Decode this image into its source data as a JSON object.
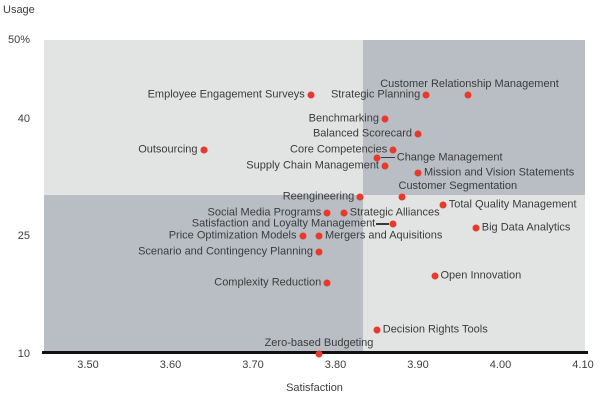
{
  "chart_data": {
    "type": "scatter",
    "title": "",
    "xlabel": "Satisfaction",
    "ylabel": "Usage",
    "x_axis": {
      "tick_labels": [
        "3.50",
        "3.60",
        "3.70",
        "3.80",
        "3.90",
        "4.00",
        "4.10"
      ],
      "tick_values": [
        3.5,
        3.6,
        3.7,
        3.8,
        3.9,
        4.0,
        4.1
      ],
      "range": [
        3.44,
        4.11
      ]
    },
    "y_axis": {
      "tick_labels": [
        "50%",
        "40",
        "25",
        "10"
      ],
      "tick_values": [
        50,
        40,
        25,
        10
      ],
      "range": [
        10,
        50
      ]
    },
    "quadrant_divider": {
      "satisfaction": 3.83,
      "usage": 30.3
    },
    "point_color": "#e8392c",
    "quadrant_colors": {
      "light": "#e2e3e3",
      "dark": "#b9bec4"
    },
    "points": [
      {
        "label": "Employee Engagement Surveys",
        "satisfaction": 3.77,
        "usage": 43,
        "label_position": "left"
      },
      {
        "label": "Strategic Planning",
        "satisfaction": 3.91,
        "usage": 43,
        "label_position": "left"
      },
      {
        "label": "Customer Relationship Management",
        "satisfaction": 3.96,
        "usage": 43,
        "label_position": "above-center",
        "label_dx": 2
      },
      {
        "label": "Benchmarking",
        "satisfaction": 3.86,
        "usage": 40,
        "label_position": "left"
      },
      {
        "label": "Balanced Scorecard",
        "satisfaction": 3.9,
        "usage": 38,
        "label_position": "left"
      },
      {
        "label": "Outsourcing",
        "satisfaction": 3.64,
        "usage": 36,
        "label_position": "left"
      },
      {
        "label": "Core Competencies",
        "satisfaction": 3.87,
        "usage": 36,
        "label_position": "left"
      },
      {
        "label": "Change Management",
        "satisfaction": 3.85,
        "usage": 35,
        "label_position": "right-connector"
      },
      {
        "label": "Supply Chain Management",
        "satisfaction": 3.86,
        "usage": 34,
        "label_position": "left"
      },
      {
        "label": "Mission and Vision Statements",
        "satisfaction": 3.9,
        "usage": 33,
        "label_position": "right"
      },
      {
        "label": "Reengineering",
        "satisfaction": 3.83,
        "usage": 30,
        "label_position": "left"
      },
      {
        "label": "Customer Segmentation",
        "satisfaction": 3.88,
        "usage": 30,
        "label_position": "above-left"
      },
      {
        "label": "Total Quality Management",
        "satisfaction": 3.93,
        "usage": 29,
        "label_position": "right"
      },
      {
        "label": "Social Media Programs",
        "satisfaction": 3.79,
        "usage": 28,
        "label_position": "left"
      },
      {
        "label": "Strategic Alliances",
        "satisfaction": 3.81,
        "usage": 28,
        "label_position": "right"
      },
      {
        "label": "Satisfaction and Loyalty Management",
        "satisfaction": 3.87,
        "usage": 26.5,
        "label_position": "left-connector"
      },
      {
        "label": "Price Optimization Models",
        "satisfaction": 3.76,
        "usage": 25,
        "label_position": "left"
      },
      {
        "label": "Mergers and Aquisitions",
        "satisfaction": 3.78,
        "usage": 25,
        "label_position": "right"
      },
      {
        "label": "Big Data Analytics",
        "satisfaction": 3.97,
        "usage": 26,
        "label_position": "right"
      },
      {
        "label": "Scenario and Contingency Planning",
        "satisfaction": 3.78,
        "usage": 23,
        "label_position": "left"
      },
      {
        "label": "Open Innovation",
        "satisfaction": 3.92,
        "usage": 20,
        "label_position": "right"
      },
      {
        "label": "Complexity Reduction",
        "satisfaction": 3.79,
        "usage": 19,
        "label_position": "left"
      },
      {
        "label": "Decision Rights Tools",
        "satisfaction": 3.85,
        "usage": 13,
        "label_position": "right"
      },
      {
        "label": "Zero-based Budgeting",
        "satisfaction": 3.78,
        "usage": 10,
        "label_position": "above-center"
      }
    ]
  }
}
